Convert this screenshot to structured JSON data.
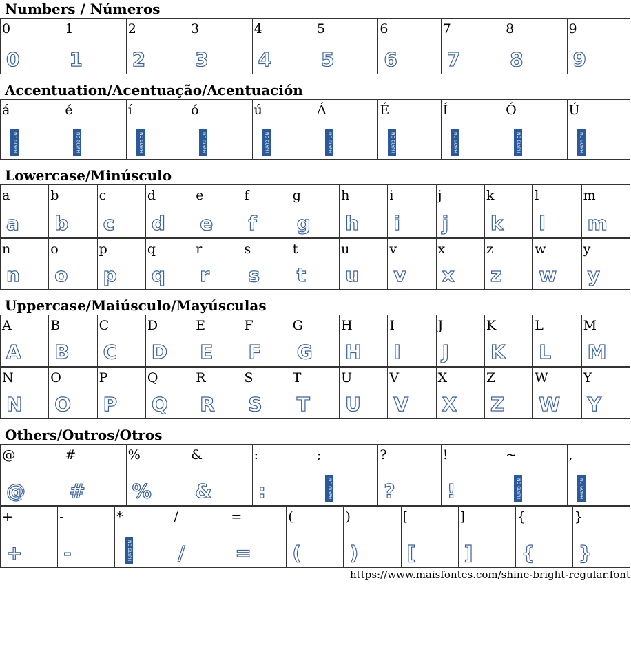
{
  "sections": [
    {
      "title": "Numbers / Números",
      "rows": [
        [
          {
            "char": "0",
            "glyph": true
          },
          {
            "char": "1",
            "glyph": true
          },
          {
            "char": "2",
            "glyph": true
          },
          {
            "char": "3",
            "glyph": true
          },
          {
            "char": "4",
            "glyph": true
          },
          {
            "char": "5",
            "glyph": true
          },
          {
            "char": "6",
            "glyph": true
          },
          {
            "char": "7",
            "glyph": true
          },
          {
            "char": "8",
            "glyph": true
          },
          {
            "char": "9",
            "glyph": true
          }
        ]
      ]
    },
    {
      "title": "Accentuation/Acentuação/Acentuación",
      "rows": [
        [
          {
            "char": "á",
            "glyph": false
          },
          {
            "char": "é",
            "glyph": false
          },
          {
            "char": "í",
            "glyph": false
          },
          {
            "char": "ó",
            "glyph": false
          },
          {
            "char": "ú",
            "glyph": false
          },
          {
            "char": "Á",
            "glyph": false
          },
          {
            "char": "É",
            "glyph": false
          },
          {
            "char": "Í",
            "glyph": false
          },
          {
            "char": "Ó",
            "glyph": false
          },
          {
            "char": "Ú",
            "glyph": false
          }
        ]
      ]
    },
    {
      "title": "Lowercase/Minúsculo",
      "rows": [
        [
          {
            "char": "a",
            "glyph": true
          },
          {
            "char": "b",
            "glyph": true
          },
          {
            "char": "c",
            "glyph": true
          },
          {
            "char": "d",
            "glyph": true
          },
          {
            "char": "e",
            "glyph": true
          },
          {
            "char": "f",
            "glyph": true
          },
          {
            "char": "g",
            "glyph": true
          },
          {
            "char": "h",
            "glyph": true
          },
          {
            "char": "i",
            "glyph": true
          },
          {
            "char": "j",
            "glyph": true
          },
          {
            "char": "k",
            "glyph": true
          },
          {
            "char": "l",
            "glyph": true
          },
          {
            "char": "m",
            "glyph": true
          }
        ],
        [
          {
            "char": "n",
            "glyph": true
          },
          {
            "char": "o",
            "glyph": true
          },
          {
            "char": "p",
            "glyph": true
          },
          {
            "char": "q",
            "glyph": true
          },
          {
            "char": "r",
            "glyph": true
          },
          {
            "char": "s",
            "glyph": true
          },
          {
            "char": "t",
            "glyph": true
          },
          {
            "char": "u",
            "glyph": true
          },
          {
            "char": "v",
            "glyph": true
          },
          {
            "char": "x",
            "glyph": true
          },
          {
            "char": "z",
            "glyph": true
          },
          {
            "char": "w",
            "glyph": true
          },
          {
            "char": "y",
            "glyph": true
          }
        ]
      ]
    },
    {
      "title": "Uppercase/Maiúsculo/Mayúsculas",
      "rows": [
        [
          {
            "char": "A",
            "glyph": true
          },
          {
            "char": "B",
            "glyph": true
          },
          {
            "char": "C",
            "glyph": true
          },
          {
            "char": "D",
            "glyph": true
          },
          {
            "char": "E",
            "glyph": true
          },
          {
            "char": "F",
            "glyph": true
          },
          {
            "char": "G",
            "glyph": true
          },
          {
            "char": "H",
            "glyph": true
          },
          {
            "char": "I",
            "glyph": true
          },
          {
            "char": "J",
            "glyph": true
          },
          {
            "char": "K",
            "glyph": true
          },
          {
            "char": "L",
            "glyph": true
          },
          {
            "char": "M",
            "glyph": true
          }
        ],
        [
          {
            "char": "N",
            "glyph": true
          },
          {
            "char": "O",
            "glyph": true
          },
          {
            "char": "P",
            "glyph": true
          },
          {
            "char": "Q",
            "glyph": true
          },
          {
            "char": "R",
            "glyph": true
          },
          {
            "char": "S",
            "glyph": true
          },
          {
            "char": "T",
            "glyph": true
          },
          {
            "char": "U",
            "glyph": true
          },
          {
            "char": "V",
            "glyph": true
          },
          {
            "char": "X",
            "glyph": true
          },
          {
            "char": "Z",
            "glyph": true
          },
          {
            "char": "W",
            "glyph": true
          },
          {
            "char": "Y",
            "glyph": true
          }
        ]
      ]
    },
    {
      "title": "Others/Outros/Otros",
      "rows": [
        [
          {
            "char": "@",
            "glyph": true
          },
          {
            "char": "#",
            "glyph": true
          },
          {
            "char": "%",
            "glyph": true
          },
          {
            "char": "&",
            "glyph": true
          },
          {
            "char": ":",
            "glyph": true
          },
          {
            "char": ";",
            "glyph": false
          },
          {
            "char": "?",
            "glyph": true
          },
          {
            "char": "!",
            "glyph": true
          },
          {
            "char": "~",
            "glyph": false
          },
          {
            "char": ",",
            "glyph": false
          }
        ],
        [
          {
            "char": "+",
            "glyph": true
          },
          {
            "char": "-",
            "glyph": true
          },
          {
            "char": "*",
            "glyph": false
          },
          {
            "char": "/",
            "glyph": true
          },
          {
            "char": "=",
            "glyph": true
          },
          {
            "char": "(",
            "glyph": true
          },
          {
            "char": ")",
            "glyph": true
          },
          {
            "char": "[",
            "glyph": true
          },
          {
            "char": "]",
            "glyph": true
          },
          {
            "char": "{",
            "glyph": true
          },
          {
            "char": "}",
            "glyph": true
          }
        ]
      ]
    }
  ],
  "no_glyph_label": "NO GLYPH",
  "footer": {
    "url": "https://www.maisfontes.com/shine-bright-regular.font"
  }
}
